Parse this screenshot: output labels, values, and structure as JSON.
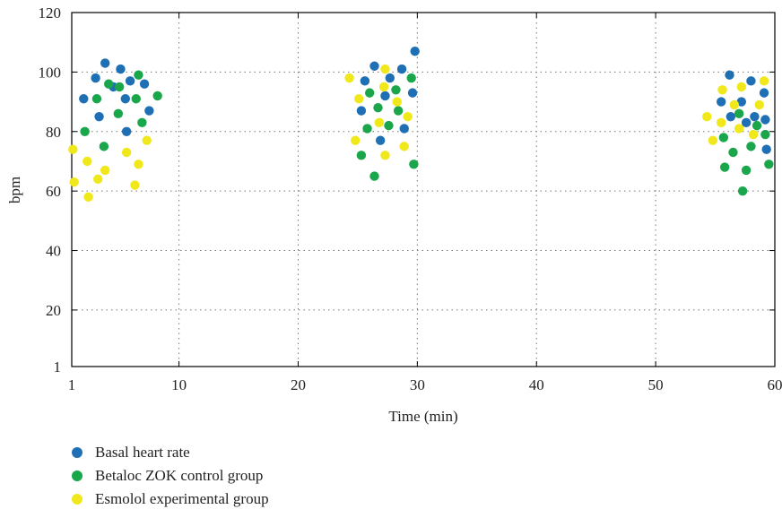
{
  "chart_data": {
    "type": "scatter",
    "xlabel": "Time (min)",
    "ylabel": "bpm",
    "xlim": [
      1,
      60
    ],
    "ylim": [
      1,
      120
    ],
    "x_ticks": [
      1,
      10,
      20,
      30,
      40,
      50,
      60
    ],
    "y_ticks": [
      1,
      20,
      40,
      60,
      80,
      100,
      120
    ],
    "grid": "dotted",
    "legend_position": "bottom-left",
    "series": [
      {
        "name": "Basal heart rate",
        "color": "#1f6fb4",
        "points": [
          [
            2.0,
            91
          ],
          [
            3.0,
            98
          ],
          [
            3.3,
            85
          ],
          [
            3.8,
            103
          ],
          [
            4.5,
            95
          ],
          [
            5.1,
            101
          ],
          [
            5.5,
            91
          ],
          [
            5.6,
            80
          ],
          [
            5.9,
            97
          ],
          [
            7.1,
            96
          ],
          [
            7.5,
            87
          ],
          [
            25.3,
            87
          ],
          [
            25.6,
            97
          ],
          [
            26.4,
            102
          ],
          [
            26.9,
            77
          ],
          [
            27.3,
            92
          ],
          [
            27.7,
            98
          ],
          [
            28.7,
            101
          ],
          [
            28.9,
            81
          ],
          [
            29.6,
            93
          ],
          [
            29.8,
            107
          ],
          [
            55.5,
            90
          ],
          [
            56.2,
            99
          ],
          [
            56.3,
            85
          ],
          [
            57.2,
            90
          ],
          [
            57.6,
            83
          ],
          [
            58.0,
            97
          ],
          [
            58.3,
            85
          ],
          [
            59.1,
            93
          ],
          [
            59.2,
            84
          ],
          [
            59.3,
            74
          ]
        ]
      },
      {
        "name": "Betaloc ZOK control group",
        "color": "#1aa64a",
        "points": [
          [
            2.1,
            80
          ],
          [
            3.1,
            91
          ],
          [
            3.7,
            75
          ],
          [
            4.1,
            96
          ],
          [
            4.9,
            86
          ],
          [
            5.0,
            95
          ],
          [
            6.4,
            91
          ],
          [
            6.6,
            99
          ],
          [
            6.9,
            83
          ],
          [
            8.2,
            92
          ],
          [
            25.3,
            72
          ],
          [
            25.8,
            81
          ],
          [
            26.0,
            93
          ],
          [
            26.4,
            65
          ],
          [
            26.7,
            88
          ],
          [
            27.6,
            82
          ],
          [
            28.2,
            94
          ],
          [
            28.4,
            87
          ],
          [
            29.5,
            98
          ],
          [
            29.7,
            69
          ],
          [
            55.7,
            78
          ],
          [
            55.8,
            68
          ],
          [
            56.5,
            73
          ],
          [
            57.0,
            86
          ],
          [
            57.3,
            60
          ],
          [
            57.6,
            67
          ],
          [
            58.0,
            75
          ],
          [
            58.5,
            82
          ],
          [
            59.2,
            79
          ],
          [
            59.5,
            69
          ]
        ]
      },
      {
        "name": "Esmolol experimental group",
        "color": "#f0e81a",
        "points": [
          [
            1.1,
            74
          ],
          [
            1.2,
            63
          ],
          [
            2.3,
            70
          ],
          [
            2.4,
            58
          ],
          [
            3.2,
            64
          ],
          [
            3.8,
            67
          ],
          [
            5.6,
            73
          ],
          [
            6.3,
            62
          ],
          [
            6.6,
            69
          ],
          [
            7.3,
            77
          ],
          [
            24.3,
            98
          ],
          [
            24.8,
            77
          ],
          [
            25.1,
            91
          ],
          [
            26.8,
            83
          ],
          [
            27.3,
            72
          ],
          [
            27.2,
            95
          ],
          [
            27.3,
            101
          ],
          [
            28.3,
            90
          ],
          [
            28.9,
            75
          ],
          [
            29.2,
            85
          ],
          [
            54.3,
            85
          ],
          [
            54.8,
            77
          ],
          [
            55.5,
            83
          ],
          [
            55.6,
            94
          ],
          [
            56.6,
            89
          ],
          [
            57.0,
            81
          ],
          [
            57.2,
            95
          ],
          [
            58.2,
            79
          ],
          [
            58.7,
            89
          ],
          [
            59.1,
            97
          ]
        ]
      }
    ]
  }
}
